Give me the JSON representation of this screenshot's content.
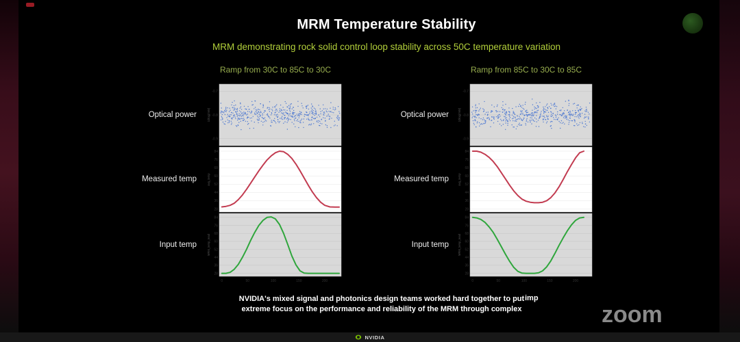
{
  "slide": {
    "title": "MRM Temperature Stability",
    "subtitle": "MRM demonstrating rock solid control loop stability across 50C temperature variation",
    "row_labels": [
      "Optical power",
      "Measured temp",
      "Input temp"
    ],
    "fragment": "imp"
  },
  "captions": {
    "line1": "NVIDIA's mixed signal and photonics design teams worked hard together to put",
    "line2": "extreme focus on the performance and reliability of the MRM through complex"
  },
  "watermark": "zoom",
  "footer": {
    "brand": "NVIDIA"
  },
  "colors": {
    "subtitle_green": "#b2cf3a",
    "panel_header_green": "#97ad4e",
    "nvidia_green": "#76b900",
    "optical_blue": "#3f6fd1",
    "measured_red": "#c23b50",
    "input_green": "#2fa63c",
    "caption_bg": "#000000",
    "watermark_gray": "#8a8a8a"
  },
  "chart_data": [
    {
      "type": "stacked-subplots",
      "title": "Ramp from 30C to 85C to 30C",
      "xlim": [
        -5,
        232
      ],
      "xticks": [
        0,
        50,
        100,
        150,
        200
      ],
      "subplots": [
        {
          "label": "Optical power",
          "type": "scatter",
          "ylabel": "10log(mW)",
          "yticks": [
            -0.7,
            -0.8,
            -0.9
          ],
          "ylim": [
            -0.93,
            -0.67
          ],
          "band": {
            "mean": -0.8,
            "spread": 0.045,
            "n": 520
          },
          "color": "#3f6fd1",
          "bg": "#d9d9d9"
        },
        {
          "label": "Measured temp",
          "type": "line",
          "ylabel": "avg_temp",
          "yticks": [
            28,
            36,
            44,
            52,
            60,
            68,
            76,
            84
          ],
          "ylim": [
            25,
            88
          ],
          "x": [
            0,
            8,
            16,
            24,
            32,
            40,
            48,
            56,
            64,
            72,
            80,
            88,
            96,
            104,
            112,
            120,
            128,
            136,
            144,
            152,
            160,
            168,
            176,
            184,
            192,
            200,
            210,
            220,
            228
          ],
          "y": [
            30,
            30.5,
            31.5,
            33.5,
            37,
            41.5,
            47,
            53,
            59,
            65,
            70.5,
            75.5,
            79.5,
            82.5,
            84,
            83.5,
            81,
            77,
            71.5,
            65,
            58,
            51,
            44.5,
            39,
            34.5,
            31.5,
            30,
            29.8,
            29.8
          ],
          "color": "#c23b50",
          "bg": "#ffffff"
        },
        {
          "label": "Input temp",
          "type": "line",
          "ylabel": "MRM_temp_read",
          "yticks": [
            28,
            36,
            44,
            52,
            60,
            68,
            76,
            84
          ],
          "ylim": [
            25,
            88
          ],
          "x": [
            0,
            8,
            16,
            24,
            32,
            40,
            48,
            56,
            64,
            72,
            80,
            88,
            96,
            104,
            112,
            120,
            128,
            136,
            144,
            152,
            160,
            168,
            176,
            184,
            192,
            200,
            210,
            220,
            228
          ],
          "y": [
            28,
            28,
            29,
            32,
            37,
            44,
            52,
            61,
            69,
            76,
            81,
            84,
            84.5,
            82.5,
            77,
            68,
            57,
            45.5,
            36.5,
            30.5,
            28.2,
            28,
            28,
            28,
            28,
            28,
            28,
            28,
            28
          ],
          "color": "#2fa63c",
          "bg": "#d9d9d9"
        }
      ]
    },
    {
      "type": "stacked-subplots",
      "title": "Ramp from 85C to 30C to 85C",
      "xlim": [
        -5,
        232
      ],
      "xticks": [
        0,
        50,
        100,
        150,
        200
      ],
      "subplots": [
        {
          "label": "Optical power",
          "type": "scatter",
          "ylabel": "10log(mW)",
          "yticks": [
            -0.7,
            -0.8,
            -0.9
          ],
          "ylim": [
            -0.93,
            -0.67
          ],
          "band": {
            "mean": -0.8,
            "spread": 0.045,
            "n": 520
          },
          "color": "#3f6fd1",
          "bg": "#d9d9d9"
        },
        {
          "label": "Measured temp",
          "type": "line",
          "ylabel": "avg_temp",
          "yticks": [
            28,
            36,
            44,
            52,
            60,
            68,
            76,
            84
          ],
          "ylim": [
            25,
            88
          ],
          "x": [
            0,
            8,
            16,
            24,
            32,
            40,
            48,
            56,
            64,
            72,
            80,
            88,
            96,
            104,
            112,
            120,
            128,
            136,
            144,
            152,
            160,
            168,
            176,
            184,
            192,
            200,
            208,
            216
          ],
          "y": [
            84,
            84,
            83,
            81,
            78,
            74,
            69,
            63,
            57,
            51,
            45.5,
            41,
            37.5,
            35.5,
            34.5,
            34,
            34,
            34.5,
            36,
            39,
            43.5,
            49.5,
            56.5,
            64,
            71,
            77.5,
            82.5,
            84
          ],
          "color": "#c23b50",
          "bg": "#ffffff"
        },
        {
          "label": "Input temp",
          "type": "line",
          "ylabel": "MRM_temp_read",
          "yticks": [
            28,
            36,
            44,
            52,
            60,
            68,
            76,
            84
          ],
          "ylim": [
            25,
            88
          ],
          "x": [
            0,
            8,
            16,
            24,
            32,
            40,
            48,
            56,
            64,
            72,
            80,
            88,
            96,
            104,
            112,
            120,
            128,
            136,
            144,
            152,
            160,
            168,
            176,
            184,
            192,
            200,
            208,
            216
          ],
          "y": [
            84,
            83.5,
            82,
            79,
            74.5,
            69,
            62,
            54.5,
            47,
            40,
            34,
            30,
            28.2,
            28,
            28,
            28,
            28.5,
            30.5,
            34.5,
            40.5,
            48,
            56,
            63.5,
            70.5,
            76.5,
            81,
            83.5,
            84
          ],
          "color": "#2fa63c",
          "bg": "#d9d9d9"
        }
      ]
    }
  ]
}
